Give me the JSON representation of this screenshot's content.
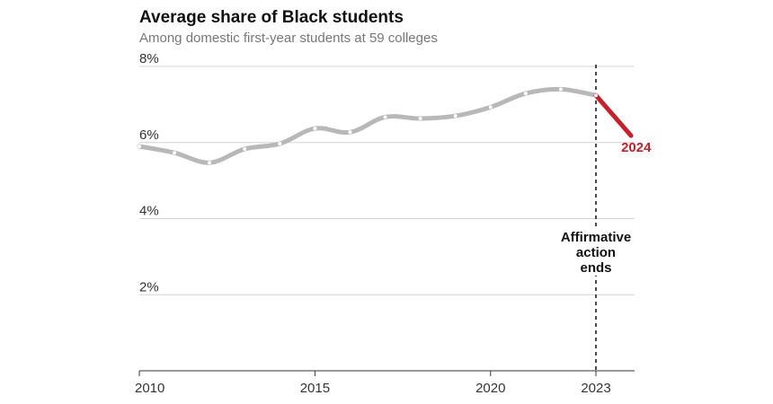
{
  "chart_data": {
    "type": "line",
    "title": "Average share of Black students",
    "subtitle": "Among domestic first-year students at 59 colleges",
    "x": [
      2010,
      2011,
      2012,
      2013,
      2014,
      2015,
      2016,
      2017,
      2018,
      2019,
      2020,
      2021,
      2022,
      2023,
      2024
    ],
    "values": [
      5.9,
      5.73,
      5.47,
      5.83,
      5.97,
      6.37,
      6.27,
      6.67,
      6.63,
      6.7,
      6.93,
      7.29,
      7.4,
      7.24,
      6.18
    ],
    "color": "#b8b8b8",
    "last_color": "#c8202a",
    "xlim": [
      2010,
      2024.1
    ],
    "xticks": [
      2010,
      2015,
      2020,
      2023
    ],
    "ylim": [
      0,
      8
    ],
    "yticks": [
      {
        "value": 2,
        "label": "2%"
      },
      {
        "value": 4,
        "label": "4%"
      },
      {
        "value": 6,
        "label": "6%"
      },
      {
        "value": 8,
        "label": "8%"
      }
    ],
    "grid": true,
    "annotation": {
      "x": 2023,
      "lines": [
        "Affirmative",
        "action",
        "ends"
      ]
    }
  }
}
